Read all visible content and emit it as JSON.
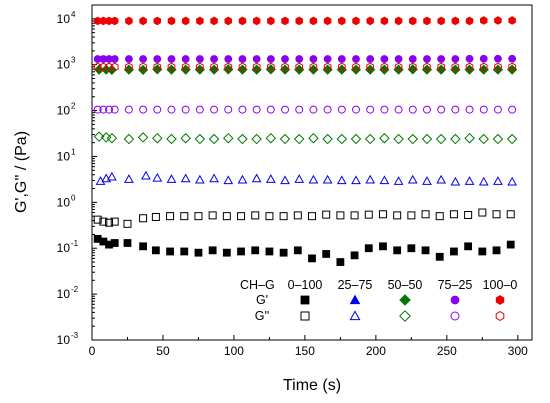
{
  "chart_data": {
    "type": "scatter",
    "xlabel": "Time (s)",
    "ylabel": "G',G'' / (Pa)",
    "xlim": [
      0,
      310
    ],
    "ylim": [
      0.001,
      20000
    ],
    "y_scale": "log",
    "x_ticks": [
      0,
      50,
      100,
      150,
      200,
      250,
      300
    ],
    "y_ticks": [
      {
        "base": "10",
        "exp": "-3",
        "value": 0.001
      },
      {
        "base": "10",
        "exp": "-2",
        "value": 0.01
      },
      {
        "base": "10",
        "exp": "-1",
        "value": 0.1
      },
      {
        "base": "10",
        "exp": "0",
        "value": 1
      },
      {
        "base": "10",
        "exp": "1",
        "value": 10
      },
      {
        "base": "10",
        "exp": "2",
        "value": 100
      },
      {
        "base": "10",
        "exp": "3",
        "value": 1000
      },
      {
        "base": "10",
        "exp": "4",
        "value": 10000
      }
    ],
    "legend": {
      "placement": "bottom-right",
      "header": "CH–G",
      "row_labels": [
        "G'",
        "G''"
      ],
      "columns": [
        "0–100",
        "25–75",
        "50–50",
        "75–25",
        "100–0"
      ]
    },
    "series": [
      {
        "name": "0–100",
        "modulus": "G'",
        "color": "#000000",
        "marker": "square",
        "filled": true,
        "x": [
          4,
          8,
          12,
          16,
          25,
          36,
          45,
          55,
          65,
          75,
          85,
          95,
          105,
          115,
          125,
          135,
          145,
          155,
          165,
          175,
          185,
          195,
          205,
          215,
          225,
          235,
          245,
          255,
          265,
          275,
          285,
          295
        ],
        "y": [
          0.16,
          0.14,
          0.12,
          0.13,
          0.13,
          0.11,
          0.09,
          0.085,
          0.085,
          0.08,
          0.09,
          0.08,
          0.085,
          0.09,
          0.085,
          0.08,
          0.09,
          0.06,
          0.075,
          0.05,
          0.07,
          0.1,
          0.11,
          0.09,
          0.1,
          0.09,
          0.065,
          0.085,
          0.11,
          0.085,
          0.09,
          0.12
        ]
      },
      {
        "name": "0–100",
        "modulus": "G''",
        "color": "#000000",
        "marker": "square",
        "filled": false,
        "x": [
          4,
          8,
          12,
          16,
          25,
          36,
          45,
          55,
          65,
          75,
          85,
          95,
          105,
          115,
          125,
          135,
          145,
          155,
          165,
          175,
          185,
          195,
          205,
          215,
          225,
          235,
          245,
          255,
          265,
          275,
          285,
          295
        ],
        "y": [
          0.42,
          0.38,
          0.36,
          0.38,
          0.34,
          0.45,
          0.48,
          0.5,
          0.5,
          0.5,
          0.52,
          0.5,
          0.5,
          0.52,
          0.5,
          0.5,
          0.52,
          0.5,
          0.54,
          0.52,
          0.52,
          0.54,
          0.55,
          0.52,
          0.52,
          0.55,
          0.5,
          0.55,
          0.53,
          0.6,
          0.55,
          0.55
        ]
      },
      {
        "name": "25–75",
        "modulus": "G''",
        "color": "#0000ee",
        "marker": "triangle",
        "filled": false,
        "x": [
          6,
          10,
          14,
          26,
          38,
          46,
          56,
          66,
          76,
          86,
          96,
          106,
          116,
          126,
          136,
          146,
          156,
          166,
          176,
          186,
          196,
          206,
          216,
          226,
          236,
          246,
          256,
          266,
          276,
          286,
          296
        ],
        "y": [
          2.9,
          3.3,
          3.6,
          3.2,
          3.8,
          3.4,
          3.2,
          3.3,
          3.1,
          3.3,
          3.0,
          3.1,
          3.3,
          3.2,
          3.0,
          3.2,
          3.1,
          3.1,
          3.0,
          3.0,
          3.1,
          3.0,
          2.9,
          3.1,
          2.9,
          3.1,
          2.8,
          2.9,
          2.8,
          2.9,
          2.8
        ]
      },
      {
        "name": "50–50",
        "modulus": "G'",
        "color": "#007700",
        "marker": "diamond",
        "filled": true,
        "x": [
          5,
          10,
          14,
          26,
          36,
          46,
          56,
          66,
          76,
          86,
          96,
          106,
          116,
          126,
          136,
          146,
          156,
          166,
          176,
          186,
          196,
          206,
          216,
          226,
          236,
          246,
          256,
          266,
          276,
          286,
          296
        ],
        "y": [
          780,
          780,
          770,
          780,
          770,
          790,
          780,
          780,
          780,
          780,
          790,
          780,
          780,
          790,
          780,
          780,
          780,
          780,
          780,
          780,
          780,
          780,
          780,
          790,
          780,
          780,
          780,
          780,
          780,
          780,
          780
        ]
      },
      {
        "name": "50–50",
        "modulus": "G''",
        "color": "#007700",
        "marker": "diamond",
        "filled": false,
        "x": [
          5,
          10,
          14,
          26,
          36,
          46,
          56,
          66,
          76,
          86,
          96,
          106,
          116,
          126,
          136,
          146,
          156,
          166,
          176,
          186,
          196,
          206,
          216,
          226,
          236,
          246,
          256,
          266,
          276,
          286,
          296
        ],
        "y": [
          27,
          26,
          25,
          24,
          26,
          25,
          24,
          25,
          24,
          24,
          25,
          24,
          24,
          25,
          24,
          24,
          25,
          24,
          24,
          24,
          24,
          25,
          24,
          24,
          24,
          24,
          24,
          25,
          24,
          24,
          24
        ]
      },
      {
        "name": "75–25",
        "modulus": "G'",
        "color": "#8800ee",
        "marker": "circle",
        "filled": true,
        "x": [
          4,
          8,
          12,
          16,
          26,
          36,
          46,
          56,
          66,
          76,
          86,
          96,
          106,
          116,
          126,
          136,
          146,
          156,
          166,
          176,
          186,
          196,
          206,
          216,
          226,
          236,
          246,
          256,
          266,
          276,
          286,
          296
        ],
        "y": [
          1330,
          1330,
          1330,
          1330,
          1330,
          1330,
          1330,
          1330,
          1330,
          1330,
          1330,
          1330,
          1330,
          1330,
          1330,
          1330,
          1330,
          1330,
          1330,
          1330,
          1330,
          1330,
          1330,
          1330,
          1330,
          1330,
          1330,
          1330,
          1350,
          1350,
          1350,
          1350
        ]
      },
      {
        "name": "75–25",
        "modulus": "G''",
        "color": "#8800ee",
        "marker": "circle",
        "filled": false,
        "x": [
          4,
          8,
          12,
          16,
          26,
          36,
          46,
          56,
          66,
          76,
          86,
          96,
          106,
          116,
          126,
          136,
          146,
          156,
          166,
          176,
          186,
          196,
          206,
          216,
          226,
          236,
          246,
          256,
          266,
          276,
          286,
          296
        ],
        "y": [
          105,
          105,
          105,
          105,
          105,
          105,
          105,
          105,
          105,
          105,
          105,
          105,
          105,
          105,
          105,
          105,
          105,
          105,
          105,
          105,
          105,
          105,
          105,
          105,
          105,
          105,
          105,
          105,
          105,
          105,
          105,
          105
        ]
      },
      {
        "name": "100–0",
        "modulus": "G'",
        "color": "#ee0000",
        "marker": "hexagon",
        "filled": true,
        "x": [
          4,
          8,
          12,
          16,
          26,
          36,
          46,
          56,
          66,
          76,
          86,
          96,
          106,
          116,
          126,
          136,
          146,
          156,
          166,
          176,
          186,
          196,
          206,
          216,
          226,
          236,
          246,
          256,
          266,
          276,
          286,
          296
        ],
        "y": [
          9000,
          9000,
          9000,
          9000,
          9000,
          9000,
          9000,
          9000,
          9000,
          9000,
          9000,
          9000,
          9000,
          9000,
          9000,
          9000,
          9000,
          9000,
          9000,
          9000,
          9000,
          9000,
          9000,
          9000,
          9000,
          9000,
          9000,
          9000,
          9000,
          9200,
          9200,
          9200
        ]
      },
      {
        "name": "100–0",
        "modulus": "G''",
        "color": "#ee0000",
        "marker": "hexagon",
        "filled": false,
        "x": [
          4,
          8,
          12,
          16,
          26,
          36,
          46,
          56,
          66,
          76,
          86,
          96,
          106,
          116,
          126,
          136,
          146,
          156,
          166,
          176,
          186,
          196,
          206,
          216,
          226,
          236,
          246,
          256,
          266,
          276,
          286,
          296
        ],
        "y": [
          890,
          890,
          890,
          890,
          890,
          890,
          890,
          890,
          890,
          890,
          890,
          890,
          890,
          890,
          890,
          890,
          890,
          890,
          890,
          890,
          890,
          890,
          890,
          890,
          890,
          890,
          890,
          890,
          890,
          890,
          890,
          890
        ]
      }
    ]
  }
}
